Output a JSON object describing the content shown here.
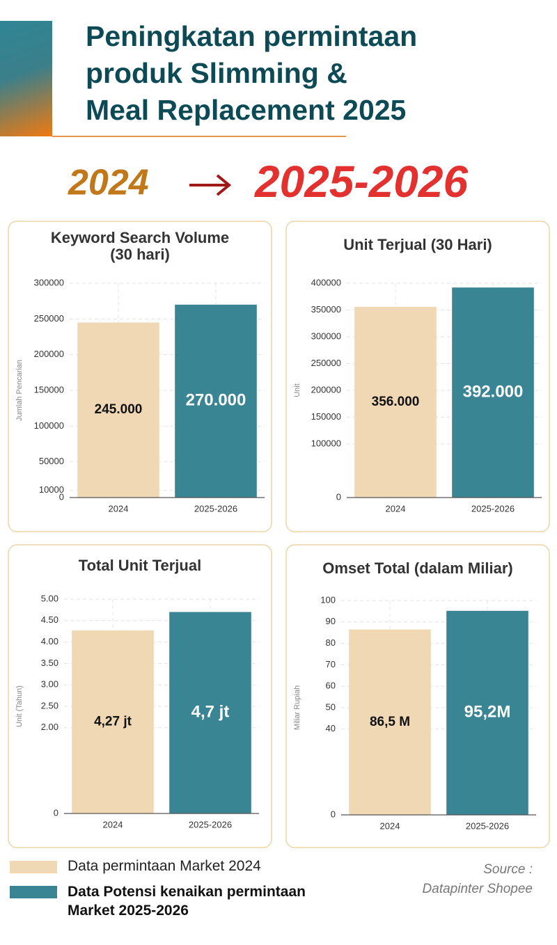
{
  "header": {
    "title": [
      "Peningkatan permintaan",
      "produk Slimming &",
      "Meal Replacement 2025"
    ]
  },
  "comparison": {
    "from": "2024",
    "to": "2025-2026"
  },
  "chart_data": [
    {
      "type": "bar",
      "title": "Keyword Search Volume (30 hari)",
      "y_label": "Jumlah Pencarian",
      "categories": [
        "2024",
        "2025-2026"
      ],
      "values": [
        245000,
        270000
      ],
      "value_labels": [
        "245.000",
        "270.000"
      ],
      "colors": [
        "#f0d8b4",
        "#3a8594"
      ],
      "ylim": [
        0,
        300000
      ],
      "yticks": [
        0,
        10000,
        50000,
        100000,
        150000,
        200000,
        250000,
        300000
      ],
      "grid": true
    },
    {
      "type": "bar",
      "title": "Unit Terjual (30 Hari)",
      "y_label": "Unit",
      "categories": [
        "2024",
        "2025-2026"
      ],
      "values": [
        356000,
        392000
      ],
      "value_labels": [
        "356.000",
        "392.000"
      ],
      "colors": [
        "#f0d8b4",
        "#3a8594"
      ],
      "ylim": [
        0,
        400000
      ],
      "yticks": [
        0,
        100000,
        150000,
        200000,
        250000,
        300000,
        350000,
        400000
      ],
      "grid": true
    },
    {
      "type": "bar",
      "title": "Total Unit Terjual",
      "y_label": "Unit (Tahun)",
      "categories": [
        "2024",
        "2025-2026"
      ],
      "values": [
        4.27,
        4.7
      ],
      "value_labels": [
        "4,27 jt",
        "4,7 jt"
      ],
      "colors": [
        "#f0d8b4",
        "#3a8594"
      ],
      "ylim": [
        0,
        5
      ],
      "yticks": [
        0,
        {
          "value": 2,
          "label": "2.00"
        },
        {
          "value": 2.5,
          "label": "2.50"
        },
        {
          "value": 3,
          "label": "3.00"
        },
        {
          "value": 3.5,
          "label": "3.50"
        },
        {
          "value": 4,
          "label": "4.00"
        },
        {
          "value": 4.5,
          "label": "4.50"
        },
        {
          "value": 5,
          "label": "5.00"
        }
      ],
      "grid": true
    },
    {
      "type": "bar",
      "title": "Omset Total (dalam Miliar)",
      "y_label": "Miliar Rupiah",
      "categories": [
        "2024",
        "2025-2026"
      ],
      "values": [
        86.5,
        95.2
      ],
      "value_labels": [
        "86,5 M",
        "95,2M"
      ],
      "colors": [
        "#f0d8b4",
        "#3a8594"
      ],
      "ylim": [
        0,
        100
      ],
      "yticks": [
        0,
        40,
        50,
        60,
        70,
        80,
        90,
        100
      ],
      "grid": true
    }
  ],
  "legend": [
    "Data permintaan Market 2024",
    "Data Potensi kenaikan permintaan Market 2025-2026"
  ],
  "source": [
    "Source :",
    "Datapinter Shopee"
  ]
}
